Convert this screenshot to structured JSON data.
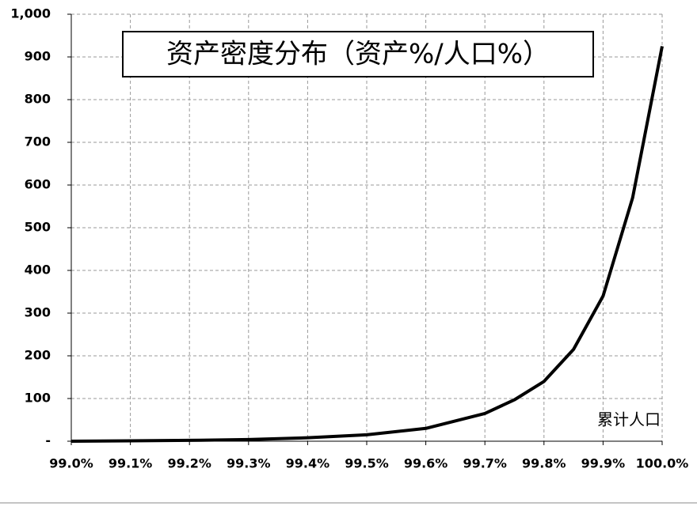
{
  "chart_data": {
    "type": "line",
    "title": "资产密度分布（资产%/人口%）",
    "x_label": "累计人口",
    "x": [
      99.0,
      99.1,
      99.2,
      99.3,
      99.4,
      99.5,
      99.6,
      99.7,
      99.75,
      99.8,
      99.85,
      99.9,
      99.95,
      100.0
    ],
    "series": [
      {
        "color": "#000000",
        "values": [
          0,
          1,
          2,
          4,
          8,
          15,
          30,
          65,
          97,
          140,
          215,
          340,
          570,
          925
        ]
      }
    ],
    "xlim": [
      99.0,
      100.0
    ],
    "xticks": [
      {
        "value": 99.0,
        "label": "99.0%"
      },
      {
        "value": 99.1,
        "label": "99.1%"
      },
      {
        "value": 99.2,
        "label": "99.2%"
      },
      {
        "value": 99.3,
        "label": "99.3%"
      },
      {
        "value": 99.4,
        "label": "99.4%"
      },
      {
        "value": 99.5,
        "label": "99.5%"
      },
      {
        "value": 99.6,
        "label": "99.6%"
      },
      {
        "value": 99.7,
        "label": "99.7%"
      },
      {
        "value": 99.8,
        "label": "99.8%"
      },
      {
        "value": 99.9,
        "label": "99.9%"
      },
      {
        "value": 100.0,
        "label": "100.0%"
      }
    ],
    "ylim": [
      0,
      1000
    ],
    "yticks": [
      {
        "value": 0,
        "label": "-"
      },
      100,
      200,
      300,
      400,
      500,
      600,
      700,
      800,
      900,
      {
        "value": 1000,
        "label": "1,000"
      }
    ],
    "grid": true
  }
}
